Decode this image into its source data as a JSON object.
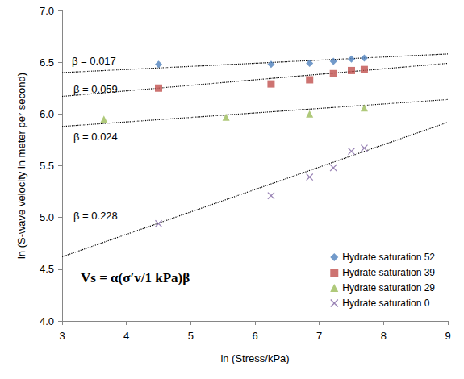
{
  "chart_data": {
    "type": "scatter",
    "x_label": "ln (Stress/kPa)",
    "y_label": "ln (S-wave velocity in meter per second)",
    "xlim": [
      3,
      9
    ],
    "xticks": [
      3,
      4,
      5,
      6,
      7,
      8,
      9
    ],
    "ylim": [
      4,
      7
    ],
    "yticks": [
      {
        "value": 4,
        "label": "4.0"
      },
      4.5,
      {
        "value": 5,
        "label": "5.0"
      },
      5.5,
      {
        "value": 6,
        "label": "6.0"
      },
      6.5,
      {
        "value": 7,
        "label": "7.0"
      }
    ],
    "grid": false,
    "legend": "bottom-right",
    "series": [
      {
        "name": "Hydrate saturation 52",
        "color": "#4F81BD",
        "marker": "diamond",
        "x": [
          4.5,
          6.25,
          6.85,
          7.22,
          7.5,
          7.7
        ],
        "values": [
          6.48,
          6.48,
          6.49,
          6.51,
          6.53,
          6.54
        ]
      },
      {
        "name": "Hydrate saturation 39",
        "color": "#C0504D",
        "marker": "square",
        "x": [
          4.5,
          6.25,
          6.85,
          7.22,
          7.5,
          7.7
        ],
        "values": [
          6.25,
          6.29,
          6.33,
          6.39,
          6.42,
          6.43
        ]
      },
      {
        "name": "Hydrate saturation 29",
        "color": "#9BBB59",
        "marker": "triangle",
        "x": [
          3.65,
          5.55,
          6.85,
          7.7
        ],
        "values": [
          5.95,
          5.97,
          6.0,
          6.06
        ]
      },
      {
        "name": "Hydrate saturation 0",
        "color": "#8064A2",
        "marker": "x",
        "x": [
          4.5,
          6.25,
          6.85,
          7.22,
          7.5,
          7.7
        ],
        "values": [
          4.94,
          5.21,
          5.39,
          5.48,
          5.64,
          5.67
        ]
      }
    ],
    "trendlines": [
      {
        "label": "β = 0.017",
        "x": [
          3,
          9
        ],
        "values": [
          6.4,
          6.58
        ],
        "color": "#000000",
        "line_style": "dotted"
      },
      {
        "label": "β = 0.059",
        "x": [
          3,
          9
        ],
        "values": [
          6.17,
          6.49
        ],
        "color": "#000000",
        "line_style": "dotted"
      },
      {
        "label": "β = 0.024",
        "x": [
          3,
          9
        ],
        "values": [
          5.88,
          6.14
        ],
        "color": "#000000",
        "line_style": "dotted"
      },
      {
        "label": "β = 0.228",
        "x": [
          3,
          9
        ],
        "values": [
          4.62,
          5.92
        ],
        "color": "#000000",
        "line_style": "dotted"
      }
    ],
    "formula": "Vs = α(σ′v/1 kPa)β"
  }
}
